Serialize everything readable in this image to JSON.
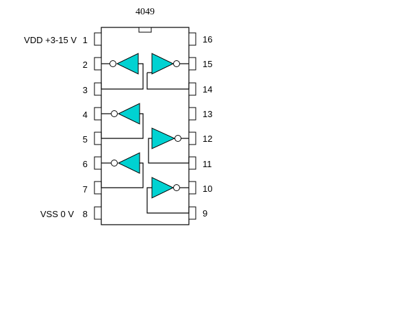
{
  "chip": {
    "title": "4049",
    "gate_color": "#00d2d2"
  },
  "pins_left": [
    {
      "num": "1",
      "label": "VDD +3-15 V"
    },
    {
      "num": "2",
      "label": ""
    },
    {
      "num": "3",
      "label": ""
    },
    {
      "num": "4",
      "label": ""
    },
    {
      "num": "5",
      "label": ""
    },
    {
      "num": "6",
      "label": ""
    },
    {
      "num": "7",
      "label": ""
    },
    {
      "num": "8",
      "label": "VSS 0 V"
    }
  ],
  "pins_right": [
    {
      "num": "16"
    },
    {
      "num": "15"
    },
    {
      "num": "14"
    },
    {
      "num": "13"
    },
    {
      "num": "12"
    },
    {
      "num": "11"
    },
    {
      "num": "10"
    },
    {
      "num": "9"
    }
  ]
}
